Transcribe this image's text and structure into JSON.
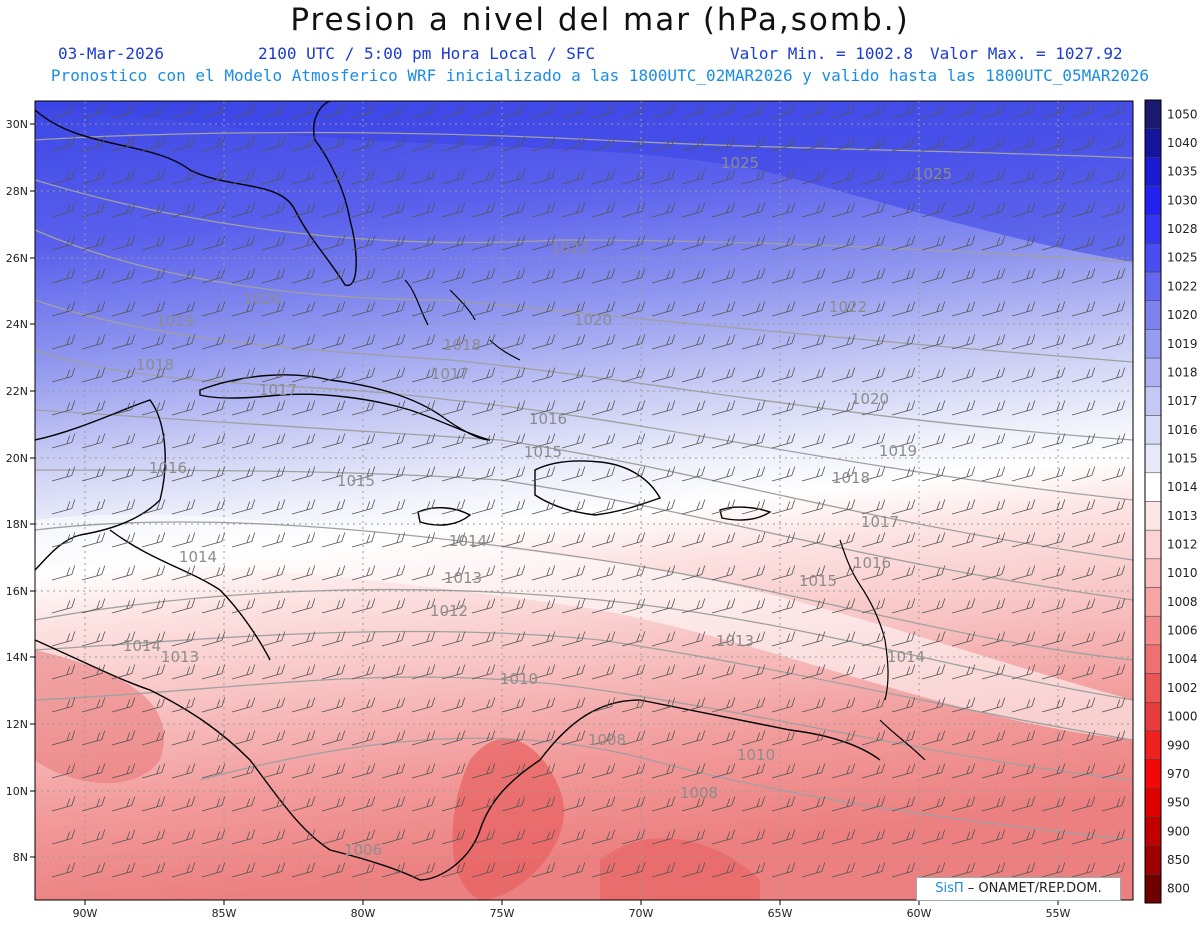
{
  "header": {
    "title": "Presion a nivel del mar (hPa,somb.)",
    "date": "03-Mar-2026",
    "time": "2100 UTC / 5:00 pm Hora Local / SFC",
    "min": "Valor Min. = 1002.8",
    "max": "Valor Max. = 1027.92",
    "forecast": "Pronostico con el Modelo Atmosferico WRF inicializado a las 1800UTC_02MAR2026 y valido hasta las  1800UTC_05MAR2026"
  },
  "map": {
    "lat_labels": [
      "30N",
      "28N",
      "26N",
      "24N",
      "22N",
      "20N",
      "18N",
      "16N",
      "14N",
      "12N",
      "10N",
      "8N"
    ],
    "lon_labels": [
      "90W",
      "85W",
      "80W",
      "75W",
      "70W",
      "65W",
      "60W",
      "55W"
    ],
    "contour_labels": [
      "1025",
      "1025",
      "1022",
      "1022",
      "1020",
      "1020",
      "1019",
      "1018",
      "1018",
      "1017",
      "1017",
      "1016",
      "1016",
      "1015",
      "1015",
      "1014",
      "1014",
      "1014",
      "1013",
      "1013",
      "1012",
      "1010",
      "1010",
      "1008",
      "1008",
      "1006",
      "1020",
      "1019",
      "1018",
      "1017",
      "1016",
      "1015",
      "1014",
      "1013"
    ],
    "colors": {
      "ocean_high": "#3b46e6",
      "ocean_mid": "#9aa4f0",
      "neutral": "#ffffff",
      "low": "#f49a9a",
      "lowest": "#e85a5a",
      "contour": "#a0a0a0",
      "coast": "#000000",
      "barb": "#555555"
    }
  },
  "colorbar": {
    "levels": [
      "1050",
      "1040",
      "1035",
      "1030",
      "1028",
      "1025",
      "1022",
      "1020",
      "1019",
      "1018",
      "1017",
      "1016",
      "1015",
      "1014",
      "1013",
      "1012",
      "1010",
      "1008",
      "1006",
      "1004",
      "1002",
      "1000",
      "990",
      "970",
      "950",
      "900",
      "850",
      "800"
    ],
    "colors": [
      "#1a1a70",
      "#14149e",
      "#1a1ad0",
      "#2222f0",
      "#3434f2",
      "#4a4ef0",
      "#6468ee",
      "#7c82ee",
      "#969cf0",
      "#aeb2f2",
      "#c4c8f4",
      "#d8daf6",
      "#e8e9f8",
      "#ffffff",
      "#fde6e6",
      "#fcd2d2",
      "#f9bcbc",
      "#f6a4a4",
      "#f28c8c",
      "#ee7070",
      "#ea5656",
      "#e63c3c",
      "#f02020",
      "#f20808",
      "#e00000",
      "#c00000",
      "#a00000",
      "#700000"
    ]
  },
  "credit": {
    "brand": "SisΠ",
    "text": " – ONAMET/REP.DOM."
  }
}
